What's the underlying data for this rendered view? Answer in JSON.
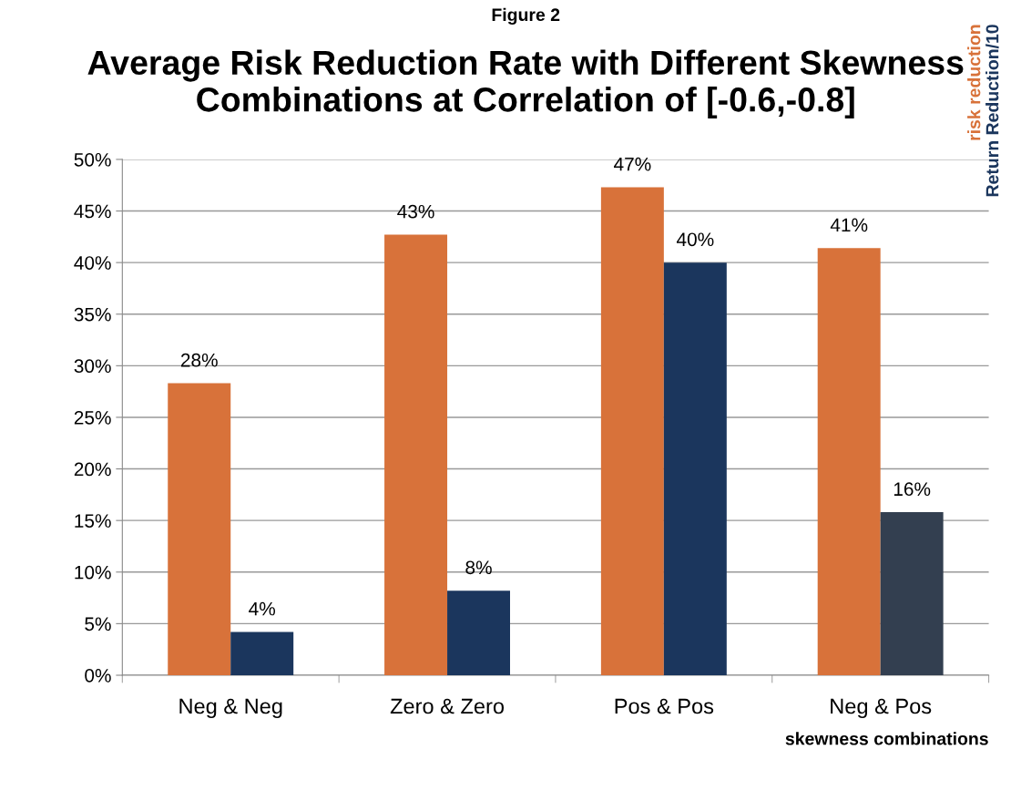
{
  "chart_data": {
    "type": "bar",
    "title": "Average Risk Reduction Rate with Different Skewness Combinations at Correlation of [-0.6,-0.8]",
    "annotations": [
      "Figure 2"
    ],
    "xlabel": "skewness combinations",
    "categories": [
      "Neg & Neg",
      "Zero & Zero",
      "Pos & Pos",
      "Neg & Pos"
    ],
    "series": [
      {
        "name": "risk reduction",
        "color": "#d8723a",
        "values": [
          28.3,
          42.7,
          47.3,
          41.4
        ],
        "value_labels": [
          "28%",
          "43%",
          "47%",
          "41%"
        ]
      },
      {
        "name": "Return Reduction/10",
        "color": "#1b365d",
        "colors": [
          "#1b365d",
          "#1b365d",
          "#1b365d",
          "#333f50"
        ],
        "values": [
          4.2,
          8.2,
          40.0,
          15.8
        ],
        "value_labels": [
          "4%",
          "8%",
          "40%",
          "16%"
        ]
      }
    ],
    "ylim": [
      0,
      50
    ],
    "yticks": [
      {
        "value": 0,
        "label": "0%"
      },
      {
        "value": 5,
        "label": "5%"
      },
      {
        "value": 10,
        "label": "10%"
      },
      {
        "value": 15,
        "label": "15%"
      },
      {
        "value": 20,
        "label": "20%"
      },
      {
        "value": 25,
        "label": "25%"
      },
      {
        "value": 30,
        "label": "30%"
      },
      {
        "value": 35,
        "label": "35%"
      },
      {
        "value": 40,
        "label": "40%"
      },
      {
        "value": 45,
        "label": "45%"
      },
      {
        "value": 50,
        "label": "50%"
      }
    ],
    "grid": "y",
    "legend": "right"
  }
}
